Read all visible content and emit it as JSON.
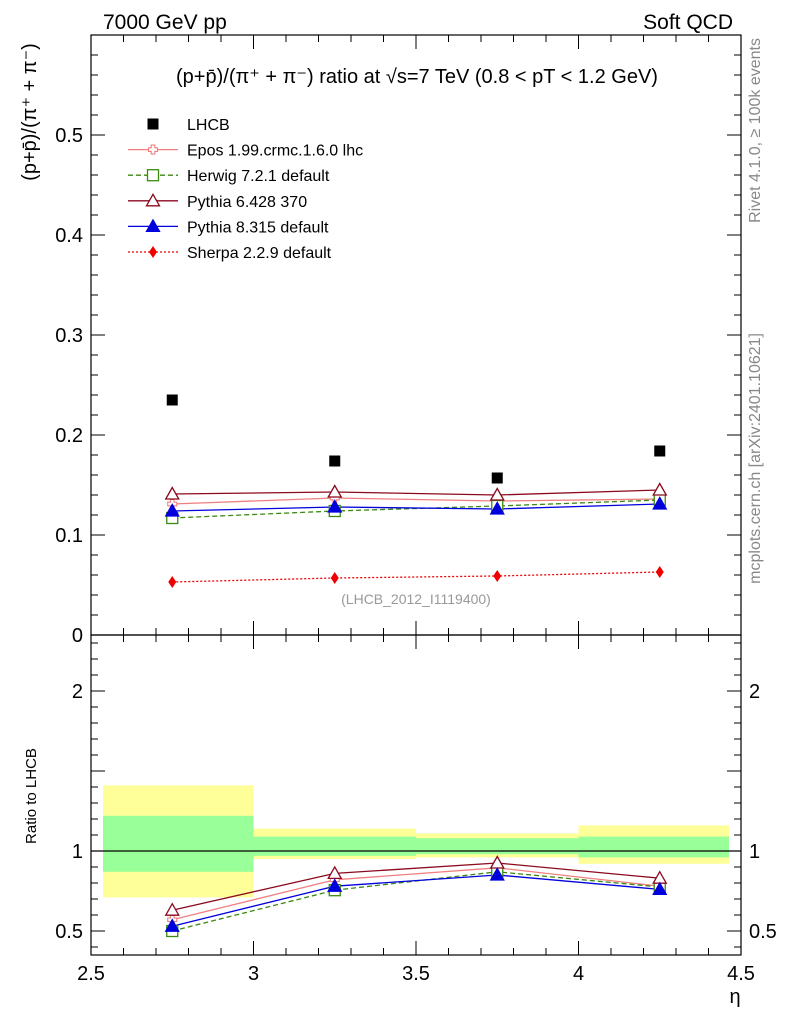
{
  "header": {
    "left": "7000 GeV pp",
    "right": "Soft QCD"
  },
  "side_labels": {
    "rivet": "Rivet 4.1.0, ≥ 100k events",
    "mcplots": "mcplots.cern.ch [arXiv:2401.10621]"
  },
  "chart_data": [
    {
      "type": "scatter",
      "panel": "main",
      "title": "(p+p̄)/(π⁺ + π⁻) ratio at √s=7 TeV (0.8 < pT < 1.2 GeV)",
      "ylabel": "(p+p̄)/(π⁺ + π⁻)",
      "xlabel": "η",
      "xlim": [
        2.5,
        4.5
      ],
      "ylim": [
        0,
        0.6
      ],
      "yticks": [
        {
          "v": 0,
          "label": "0"
        },
        {
          "v": 0.1,
          "label": "0.1"
        },
        {
          "v": 0.2,
          "label": "0.2"
        },
        {
          "v": 0.3,
          "label": "0.3"
        },
        {
          "v": 0.4,
          "label": "0.4"
        },
        {
          "v": 0.5,
          "label": "0.5"
        }
      ],
      "x": [
        2.75,
        3.25,
        3.75,
        4.25
      ],
      "bin_edges": [
        2.5,
        3.0,
        3.5,
        4.0,
        4.5
      ],
      "annotation": "(LHCB_2012_I1119400)",
      "series": [
        {
          "key": "lhcb",
          "name": "LHCB",
          "color": "#000000",
          "marker": "square-filled",
          "line": "none",
          "values": [
            0.235,
            0.174,
            0.157,
            0.184
          ]
        },
        {
          "key": "epos",
          "name": "Epos 1.99.crmc.1.6.0 lhc",
          "color": "#f08080",
          "marker": "cross-open",
          "line": "solid",
          "values": [
            0.131,
            0.137,
            0.134,
            0.136
          ]
        },
        {
          "key": "herwig",
          "name": "Herwig 7.2.1 default",
          "color": "#3a8a10",
          "marker": "square-open",
          "line": "dashed",
          "values": [
            0.117,
            0.124,
            0.129,
            0.135
          ]
        },
        {
          "key": "pythia6",
          "name": "Pythia 6.428 370",
          "color": "#8b0a1e",
          "marker": "triangle-open",
          "line": "solid",
          "values": [
            0.141,
            0.143,
            0.14,
            0.145
          ]
        },
        {
          "key": "pythia8",
          "name": "Pythia 8.315 default",
          "color": "#0000dd",
          "marker": "triangle-filled",
          "line": "solid",
          "values": [
            0.124,
            0.128,
            0.126,
            0.131
          ]
        },
        {
          "key": "sherpa",
          "name": "Sherpa 2.2.9 default",
          "color": "#ee0000",
          "marker": "diamond-filled",
          "line": "dotted",
          "values": [
            0.053,
            0.057,
            0.059,
            0.063
          ]
        }
      ]
    },
    {
      "type": "line",
      "panel": "ratio",
      "ylabel": "Ratio to LHCB",
      "xlabel": "η",
      "xlim": [
        2.5,
        4.5
      ],
      "ylim": [
        0.35,
        2.35
      ],
      "yticks": [
        {
          "v": 0.5,
          "label": "0.5"
        },
        {
          "v": 1,
          "label": "1"
        },
        {
          "v": 2,
          "label": "2"
        }
      ],
      "xticks": [
        {
          "v": 2.5,
          "label": "2.5"
        },
        {
          "v": 3,
          "label": "3"
        },
        {
          "v": 3.5,
          "label": "3.5"
        },
        {
          "v": 4,
          "label": "4"
        },
        {
          "v": 4.5,
          "label": "4.5"
        }
      ],
      "x": [
        2.75,
        3.25,
        3.75,
        4.25
      ],
      "bands": {
        "bin_edges": [
          2.5,
          3.0,
          3.5,
          4.0,
          4.5
        ],
        "outer_low": [
          0.71,
          0.95,
          0.96,
          0.92
        ],
        "outer_high": [
          1.41,
          1.14,
          1.11,
          1.16
        ],
        "inner_low": [
          0.87,
          0.97,
          0.98,
          0.96
        ],
        "inner_high": [
          1.22,
          1.09,
          1.08,
          1.09
        ],
        "outer_color": "#ffff99",
        "inner_color": "#99ff99"
      },
      "series": [
        {
          "key": "epos",
          "color": "#f08080",
          "marker": "cross-open",
          "line": "solid",
          "values": [
            0.57,
            0.82,
            0.895,
            0.78
          ]
        },
        {
          "key": "herwig",
          "color": "#3a8a10",
          "marker": "square-open",
          "line": "dashed",
          "values": [
            0.5,
            0.755,
            0.87,
            0.775
          ]
        },
        {
          "key": "pythia6",
          "color": "#8b0a1e",
          "marker": "triangle-open",
          "line": "solid",
          "values": [
            0.63,
            0.86,
            0.925,
            0.83
          ]
        },
        {
          "key": "pythia8",
          "color": "#0000dd",
          "marker": "triangle-filled",
          "line": "solid",
          "values": [
            0.53,
            0.78,
            0.85,
            0.76
          ]
        }
      ]
    }
  ]
}
